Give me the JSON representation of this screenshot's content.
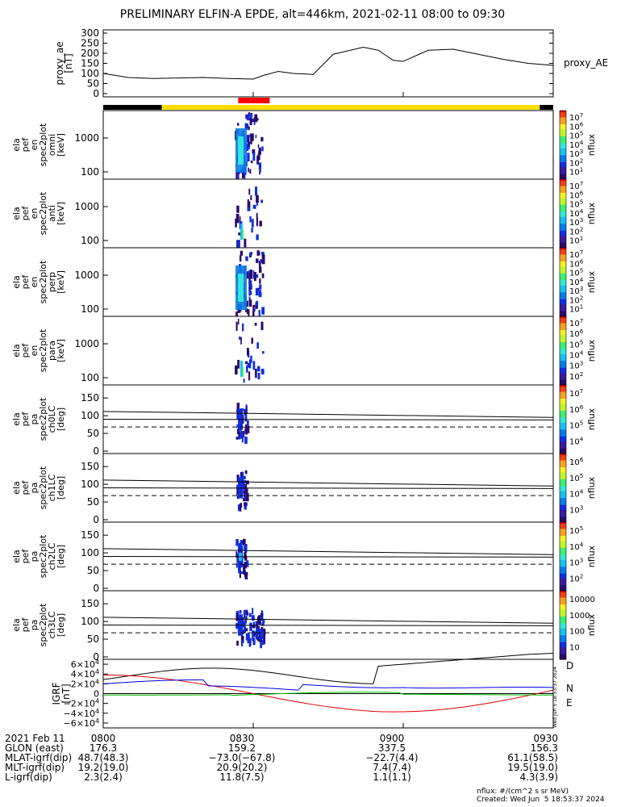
{
  "title": "PRELIMINARY ELFIN-A EPDE, alt=446km, 2021-02-11 08:00 to 09:30",
  "proxy_ae": {
    "ylabel_lines": [
      "proxy_ae",
      "[nT]"
    ],
    "right_label": "proxy_AE",
    "yticks": [
      "300",
      "250",
      "200",
      "150",
      "100",
      "50",
      "0"
    ],
    "series_note": "approximate values",
    "t_min": [
      0,
      5,
      10,
      20,
      25,
      30,
      32,
      35,
      38,
      42,
      46,
      52,
      55,
      58,
      60,
      65,
      70,
      75,
      80,
      85,
      90
    ],
    "values": [
      100,
      80,
      75,
      80,
      75,
      72,
      90,
      110,
      100,
      95,
      195,
      230,
      215,
      165,
      160,
      215,
      220,
      195,
      170,
      150,
      140
    ]
  },
  "orbit_bar": {
    "segments": [
      {
        "from": 0,
        "to": 0.13,
        "color": "#000000"
      },
      {
        "from": 0.13,
        "to": 0.97,
        "color": "#ffdd00"
      },
      {
        "from": 0.97,
        "to": 1.0,
        "color": "#000000"
      }
    ],
    "science_zone": {
      "from": 0.3,
      "to": 0.37,
      "color": "#ff0000"
    }
  },
  "energy_panels": [
    {
      "ylabel_lines": [
        "ela",
        "pef",
        "en",
        "spec2plot",
        "omni",
        "[keV]"
      ],
      "yticks": [
        "1000",
        "100"
      ],
      "cbar_ticks": [
        "10^7",
        "10^6",
        "10^5",
        "10^4",
        "10^3",
        "10^2",
        "10^1"
      ],
      "cbar_label": "nflux"
    },
    {
      "ylabel_lines": [
        "ela",
        "pef",
        "en",
        "spec2plot",
        "anti",
        "[keV]"
      ],
      "yticks": [
        "1000",
        "100"
      ],
      "cbar_ticks": [
        "10^7",
        "10^6",
        "10^5",
        "10^4",
        "10^3",
        "10^2",
        "10^1"
      ],
      "cbar_label": "nflux"
    },
    {
      "ylabel_lines": [
        "ela",
        "pef",
        "en",
        "spec2plot",
        "perp",
        "[keV]"
      ],
      "yticks": [
        "1000",
        "100"
      ],
      "cbar_ticks": [
        "10^7",
        "10^6",
        "10^5",
        "10^4",
        "10^3",
        "10^2",
        "10^1"
      ],
      "cbar_label": "nflux"
    },
    {
      "ylabel_lines": [
        "ela",
        "pef",
        "en",
        "spec2plot",
        "para",
        "[keV]"
      ],
      "yticks": [
        "1000",
        "100"
      ],
      "cbar_ticks": [
        "10^7",
        "10^6",
        "10^5",
        "10^4",
        "10^3",
        "10^2"
      ],
      "cbar_label": "nflux"
    }
  ],
  "pitch_panels": [
    {
      "ylabel_lines": [
        "ela",
        "pef",
        "pa",
        "spec2plot",
        "ch0LC",
        "[deg]"
      ],
      "yticks": [
        "150",
        "100",
        "50",
        "0"
      ],
      "cbar_ticks": [
        "10^7",
        "10^6",
        "10^5",
        "10^4"
      ],
      "cbar_label": "nflux"
    },
    {
      "ylabel_lines": [
        "ela",
        "pef",
        "pa",
        "spec2plot",
        "ch1LC",
        "[deg]"
      ],
      "yticks": [
        "150",
        "100",
        "50",
        "0"
      ],
      "cbar_ticks": [
        "10^6",
        "10^5",
        "10^4",
        "10^3"
      ],
      "cbar_label": "nflux"
    },
    {
      "ylabel_lines": [
        "ela",
        "pef",
        "pa",
        "spec2plot",
        "ch2LC",
        "[deg]"
      ],
      "yticks": [
        "150",
        "100",
        "50",
        "0"
      ],
      "cbar_ticks": [
        "10^5",
        "10^4",
        "10^3",
        "10^2"
      ],
      "cbar_label": "nflux"
    },
    {
      "ylabel_lines": [
        "ela",
        "pef",
        "pa",
        "spec2plot",
        "ch3LC",
        "[deg]"
      ],
      "yticks": [
        "150",
        "100",
        "50",
        "0"
      ],
      "cbar_ticks": [
        "10000",
        "1000",
        "100",
        "10"
      ],
      "cbar_label": "nflux"
    }
  ],
  "igrf": {
    "ylabel_lines": [
      "IGRF",
      "[nT]"
    ],
    "yticks": [
      "6×10^4",
      "4×10^4",
      "2×10^4",
      "0",
      "−2×10^4",
      "−4×10^4",
      "−6×10^4"
    ],
    "legend": [
      {
        "label": "D",
        "color": "#dd0000"
      },
      {
        "label": "N",
        "color": "#0000dd"
      },
      {
        "label": "E",
        "color": "#00bb00"
      }
    ],
    "side_note": "Wed Jun  5 18:53:37 2024"
  },
  "footer": {
    "rows": [
      {
        "label": "2021 Feb 11",
        "values": [
          "0800",
          "0830",
          "0900",
          "0930"
        ]
      },
      {
        "label": "GLON (east)",
        "values": [
          "176.3",
          "159.2",
          "337.5",
          "156.3"
        ]
      },
      {
        "label": "MLAT-igrf(dip)",
        "values": [
          "48.7(48.3)",
          "−73.0(−67.8)",
          "−22.7(4.4)",
          "61.1(58.5)"
        ]
      },
      {
        "label": "MLT-igrf(dip)",
        "values": [
          "19.2(19.0)",
          "20.9(20.2)",
          "7.4(7.4)",
          "19.5(19.0)"
        ]
      },
      {
        "label": "L-igrf(dip)",
        "values": [
          "2.3(2.4)",
          "11.8(7.5)",
          "1.1(1.1)",
          "4.3(3.9)"
        ]
      }
    ],
    "units_note": "nflux: #/(cm^2 s sr MeV)",
    "created": "Created: Wed Jun  5 18:53:37 2024"
  },
  "chart_data": {
    "type": "line",
    "title": "PRELIMINARY ELFIN-A EPDE, alt=446km, 2021-02-11 08:00 to 09:30",
    "x_ticks": [
      "0800",
      "0830",
      "0900",
      "0930"
    ],
    "proxy_ae_series": {
      "name": "proxy_AE",
      "unit": "nT",
      "ylim": [
        0,
        300
      ]
    },
    "igrf_series": [
      "D",
      "N",
      "E"
    ]
  }
}
